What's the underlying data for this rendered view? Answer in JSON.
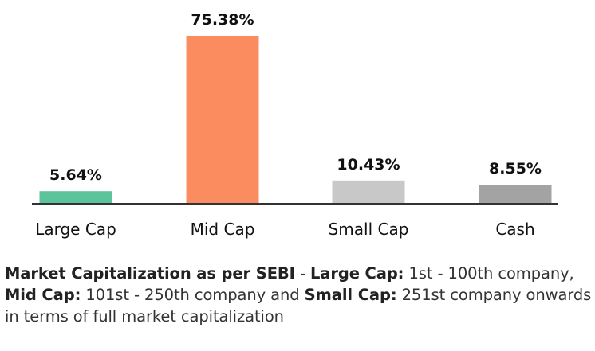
{
  "chart_data": {
    "type": "bar",
    "categories": [
      "Large Cap",
      "Mid Cap",
      "Small Cap",
      "Cash"
    ],
    "values": [
      5.64,
      75.38,
      10.43,
      8.55
    ],
    "value_labels": [
      "5.64%",
      "75.38%",
      "10.43%",
      "8.55%"
    ],
    "colors": [
      "#5cc39a",
      "#fb8c60",
      "#c8c8c8",
      "#a3a3a3"
    ],
    "axis_color": "#333333",
    "ylim": [
      0,
      75.38
    ],
    "grid": false,
    "legend": "none"
  },
  "footnote": {
    "heading": "Market Capitalization as per SEBI",
    "sep1": " - ",
    "large_label": "Large Cap:",
    "large_text": " 1st - 100th company, ",
    "mid_label": "Mid Cap:",
    "mid_text": " 101st - 250th company and ",
    "small_label": "Small Cap:",
    "small_text": " 251st company onwards in terms of full market capitalization"
  }
}
